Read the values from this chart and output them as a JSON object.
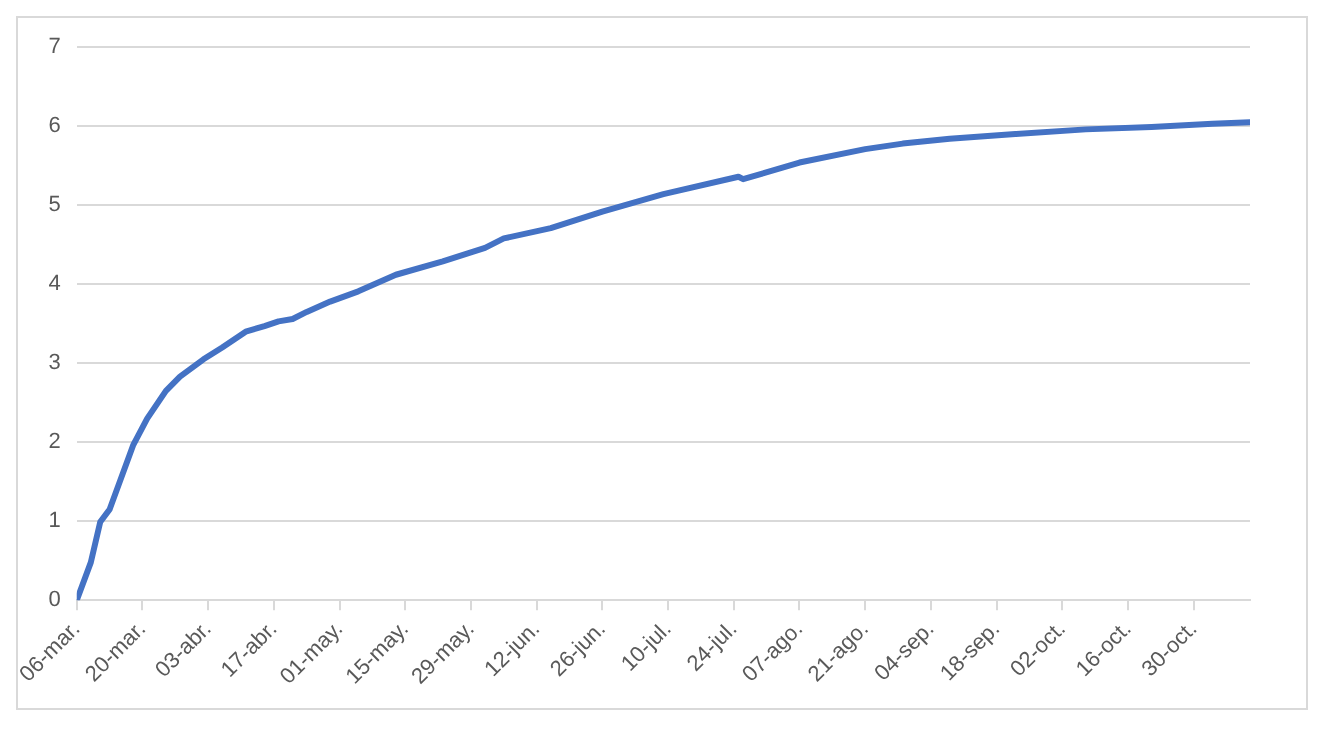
{
  "chart_data": {
    "type": "line",
    "x": [
      "--03-06",
      "--03-09",
      "--03-11",
      "--03-13",
      "--03-18",
      "--03-21",
      "--03-25",
      "--03-28",
      "--04-02",
      "--04-06",
      "--04-11",
      "--04-15",
      "--04-18",
      "--04-21",
      "--04-24",
      "--04-29",
      "--05-05",
      "--05-13",
      "--05-23",
      "--06-01",
      "--06-05",
      "--06-15",
      "--06-26",
      "--07-09",
      "--07-25",
      "--07-26",
      "--08-07",
      "--08-21",
      "--08-29",
      "--09-08",
      "--09-22",
      "--10-07",
      "--10-21",
      "--11-03",
      "--11-11"
    ],
    "series": [
      {
        "color": "#4472c4",
        "values": [
          0,
          0.48,
          0.99,
          1.15,
          1.96,
          2.3,
          2.65,
          2.83,
          3.05,
          3.2,
          3.4,
          3.47,
          3.53,
          3.56,
          3.65,
          3.78,
          3.91,
          4.12,
          4.29,
          4.46,
          4.58,
          4.71,
          4.92,
          5.14,
          5.36,
          5.33,
          5.54,
          5.71,
          5.78,
          5.84,
          5.9,
          5.96,
          5.99,
          6.03,
          6.05
        ]
      }
    ],
    "xlim": [
      "--03-06",
      "--11-11"
    ],
    "xticks": [
      {
        "value": "--03-06",
        "label": "06-mar."
      },
      {
        "value": "--03-20",
        "label": "20-mar."
      },
      {
        "value": "--04-03",
        "label": "03-abr."
      },
      {
        "value": "--04-17",
        "label": "17-abr."
      },
      {
        "value": "--05-01",
        "label": "01-may."
      },
      {
        "value": "--05-15",
        "label": "15-may."
      },
      {
        "value": "--05-29",
        "label": "29-may."
      },
      {
        "value": "--06-12",
        "label": "12-jun."
      },
      {
        "value": "--06-26",
        "label": "26-jun."
      },
      {
        "value": "--07-10",
        "label": "10-jul."
      },
      {
        "value": "--07-24",
        "label": "24-jul."
      },
      {
        "value": "--08-07",
        "label": "07-ago."
      },
      {
        "value": "--08-21",
        "label": "21-ago."
      },
      {
        "value": "--09-04",
        "label": "04-sep."
      },
      {
        "value": "--09-18",
        "label": "18-sep."
      },
      {
        "value": "--10-02",
        "label": "02-oct."
      },
      {
        "value": "--10-16",
        "label": "16-oct."
      },
      {
        "value": "--10-30",
        "label": "30-oct."
      }
    ],
    "ylim": [
      0,
      7
    ],
    "yticks": [
      0,
      1,
      2,
      3,
      4,
      5,
      6,
      7
    ],
    "grid": "y",
    "marker": "none",
    "line_style": "solid",
    "legend": false
  }
}
